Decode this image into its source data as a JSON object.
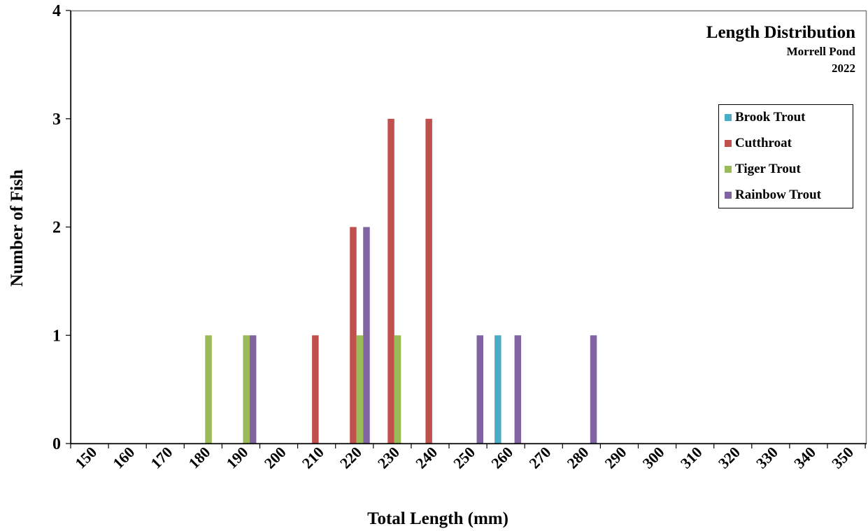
{
  "chart_data": {
    "type": "bar",
    "title": "Length Distribution",
    "subtitle_lines": [
      "Morrell Pond",
      "2022"
    ],
    "xlabel": "Total Length (mm)",
    "ylabel": "Number of Fish",
    "categories": [
      "150",
      "160",
      "170",
      "180",
      "190",
      "200",
      "210",
      "220",
      "230",
      "240",
      "250",
      "260",
      "270",
      "280",
      "290",
      "300",
      "310",
      "320",
      "330",
      "340",
      "350"
    ],
    "ylim": [
      0,
      4
    ],
    "yticks": [
      "0",
      "1",
      "2",
      "3",
      "4"
    ],
    "grid": false,
    "legend_position": "right",
    "series": [
      {
        "name": "Brook Trout",
        "color": "#4bacc6",
        "values": [
          0,
          0,
          0,
          0,
          0,
          0,
          0,
          0,
          0,
          0,
          0,
          1,
          0,
          0,
          0,
          0,
          0,
          0,
          0,
          0,
          0
        ]
      },
      {
        "name": "Cutthroat",
        "color": "#c0504d",
        "values": [
          0,
          0,
          0,
          0,
          0,
          0,
          1,
          2,
          3,
          3,
          0,
          0,
          0,
          0,
          0,
          0,
          0,
          0,
          0,
          0,
          0
        ]
      },
      {
        "name": "Tiger Trout",
        "color": "#9bbb59",
        "values": [
          0,
          0,
          0,
          1,
          1,
          0,
          0,
          1,
          1,
          0,
          0,
          0,
          0,
          0,
          0,
          0,
          0,
          0,
          0,
          0,
          0
        ]
      },
      {
        "name": "Rainbow Trout",
        "color": "#8064a2",
        "values": [
          0,
          0,
          0,
          0,
          1,
          0,
          0,
          2,
          0,
          0,
          1,
          1,
          0,
          1,
          0,
          0,
          0,
          0,
          0,
          0,
          0
        ]
      }
    ]
  }
}
